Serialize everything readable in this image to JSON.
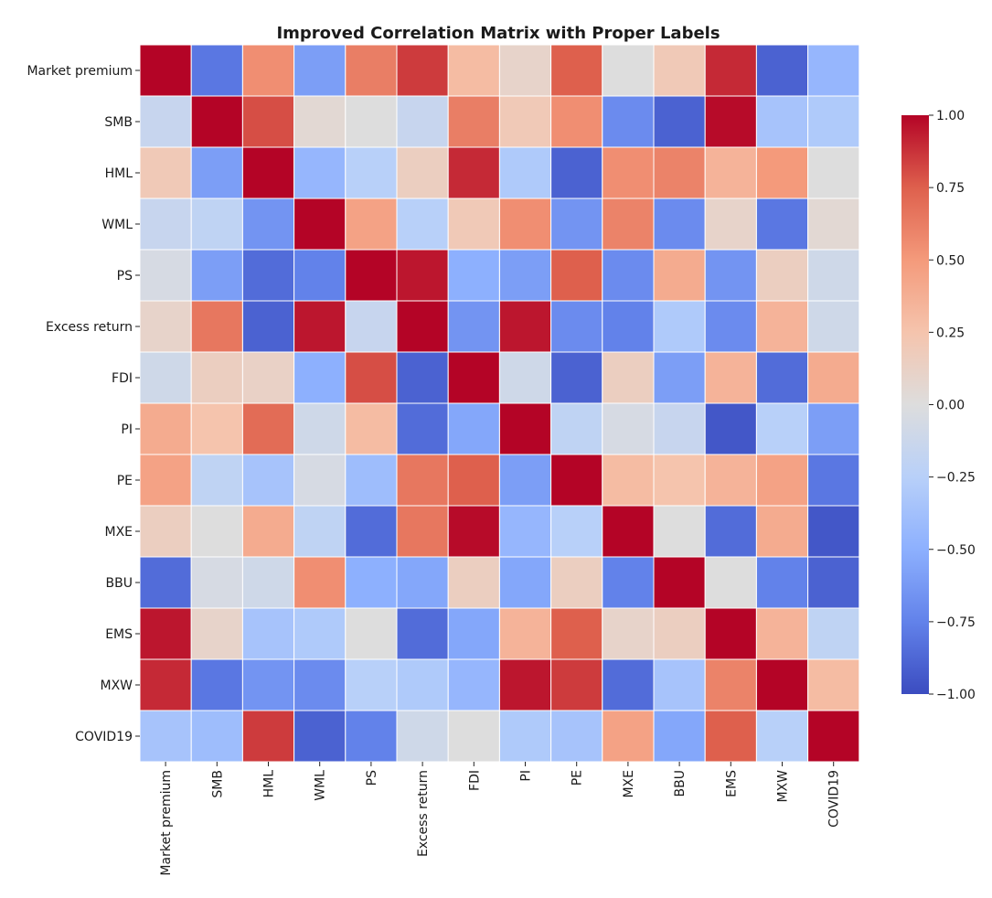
{
  "chart_data": {
    "type": "heatmap",
    "title": "Improved Correlation Matrix with Proper Labels",
    "labels": [
      "Market premium",
      "SMB",
      "HML",
      "WML",
      "PS",
      "Excess return",
      "FDI",
      "PI",
      "PE",
      "MXE",
      "BBU",
      "EMS",
      "MXW",
      "COVID19"
    ],
    "values": [
      [
        1.0,
        -0.8,
        0.55,
        -0.6,
        0.62,
        0.85,
        0.3,
        0.1,
        0.75,
        0.0,
        0.2,
        0.9,
        -0.9,
        -0.45
      ],
      [
        -0.15,
        1.0,
        0.8,
        0.05,
        0.0,
        -0.15,
        0.62,
        0.2,
        0.55,
        -0.7,
        -0.9,
        0.98,
        -0.35,
        -0.3
      ],
      [
        0.2,
        -0.6,
        1.0,
        -0.45,
        -0.25,
        0.15,
        0.9,
        -0.3,
        -0.9,
        0.55,
        0.6,
        0.35,
        0.5,
        0.0
      ],
      [
        -0.15,
        -0.2,
        -0.65,
        1.0,
        0.45,
        -0.25,
        0.2,
        0.55,
        -0.65,
        0.6,
        -0.7,
        0.1,
        -0.8,
        0.05
      ],
      [
        -0.05,
        -0.6,
        -0.85,
        -0.75,
        1.0,
        0.95,
        -0.5,
        -0.6,
        0.75,
        -0.7,
        0.4,
        -0.65,
        0.15,
        -0.1
      ],
      [
        0.1,
        0.65,
        -0.9,
        0.95,
        -0.15,
        1.0,
        -0.65,
        0.95,
        -0.7,
        -0.75,
        -0.3,
        -0.7,
        0.35,
        -0.1
      ],
      [
        -0.1,
        0.15,
        0.12,
        -0.5,
        0.8,
        -0.9,
        1.0,
        -0.1,
        -0.9,
        0.15,
        -0.6,
        0.35,
        -0.85,
        0.4
      ],
      [
        0.4,
        0.25,
        0.7,
        -0.1,
        0.3,
        -0.85,
        -0.55,
        1.0,
        -0.2,
        -0.05,
        -0.15,
        -0.95,
        -0.25,
        -0.6
      ],
      [
        0.45,
        -0.2,
        -0.35,
        -0.05,
        -0.4,
        0.65,
        0.75,
        -0.6,
        1.0,
        0.3,
        0.25,
        0.35,
        0.45,
        -0.8
      ],
      [
        0.15,
        0.0,
        0.4,
        -0.2,
        -0.85,
        0.65,
        0.98,
        -0.45,
        -0.25,
        1.0,
        0.0,
        -0.85,
        0.4,
        -0.95
      ],
      [
        -0.85,
        -0.05,
        -0.1,
        0.55,
        -0.5,
        -0.55,
        0.15,
        -0.55,
        0.15,
        -0.75,
        1.0,
        0.0,
        -0.75,
        -0.9
      ],
      [
        0.95,
        0.1,
        -0.35,
        -0.3,
        0.0,
        -0.85,
        -0.55,
        0.35,
        0.75,
        0.1,
        0.15,
        1.0,
        0.35,
        -0.2
      ],
      [
        0.9,
        -0.8,
        -0.65,
        -0.7,
        -0.25,
        -0.3,
        -0.45,
        0.95,
        0.85,
        -0.85,
        -0.35,
        0.6,
        1.0,
        0.3
      ],
      [
        -0.35,
        -0.4,
        0.85,
        -0.9,
        -0.75,
        -0.1,
        0.0,
        -0.3,
        -0.35,
        0.45,
        -0.55,
        0.75,
        -0.25,
        1.0
      ]
    ],
    "vmin": -1.0,
    "vmax": 1.0,
    "colormap": "coolwarm",
    "colorbar": {
      "ticks": [
        1.0,
        0.75,
        0.5,
        0.25,
        0.0,
        -0.25,
        -0.5,
        -0.75,
        -1.0
      ],
      "tick_labels": [
        "1.00",
        "0.75",
        "0.50",
        "0.25",
        "0.00",
        "−0.25",
        "−0.50",
        "−0.75",
        "−1.00"
      ]
    },
    "cell_border_color": "#ffffff",
    "xlabel": "",
    "ylabel": ""
  }
}
